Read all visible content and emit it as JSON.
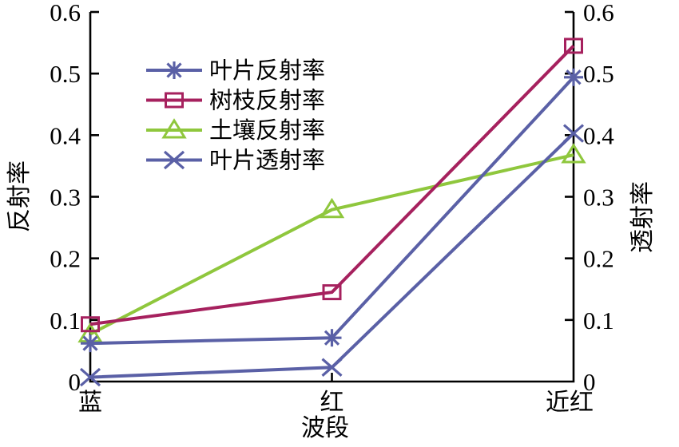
{
  "chart_data": {
    "type": "line",
    "title": "",
    "categories": [
      "蓝",
      "红",
      "近红"
    ],
    "series": [
      {
        "name": "叶片反射率",
        "marker": "asterisk",
        "color": "#5A60A6",
        "axis": "left",
        "values": [
          0.062,
          0.071,
          0.494
        ]
      },
      {
        "name": "树枝反射率",
        "marker": "square",
        "color": "#A6215E",
        "axis": "left",
        "values": [
          0.093,
          0.145,
          0.545
        ]
      },
      {
        "name": "土壤反射率",
        "marker": "triangle",
        "color": "#8FC73D",
        "axis": "left",
        "values": [
          0.077,
          0.279,
          0.368
        ]
      },
      {
        "name": "叶片透射率",
        "marker": "x",
        "color": "#5A60A6",
        "axis": "right",
        "values": [
          0.007,
          0.023,
          0.403
        ]
      }
    ],
    "xlabel": "波段",
    "ylabel_left": "反射率",
    "ylabel_right": "透射率",
    "ylim": [
      0,
      0.6
    ],
    "yticks": [
      0,
      0.1,
      0.2,
      0.3,
      0.4,
      0.5,
      0.6
    ],
    "ytick_labels": [
      "0",
      "0.1",
      "0.2",
      "0.3",
      "0.4",
      "0.5",
      "0.6"
    ],
    "xtick_labels": [
      "蓝",
      "红",
      "近红"
    ],
    "legend": [
      "叶片反射率",
      "树枝反射率",
      "土壤反射率",
      "叶片透射率"
    ],
    "legend_position": "upper-left-inside",
    "grid": false
  },
  "colors": {
    "axis": "#000000",
    "background": "#ffffff",
    "text": "#000000"
  }
}
